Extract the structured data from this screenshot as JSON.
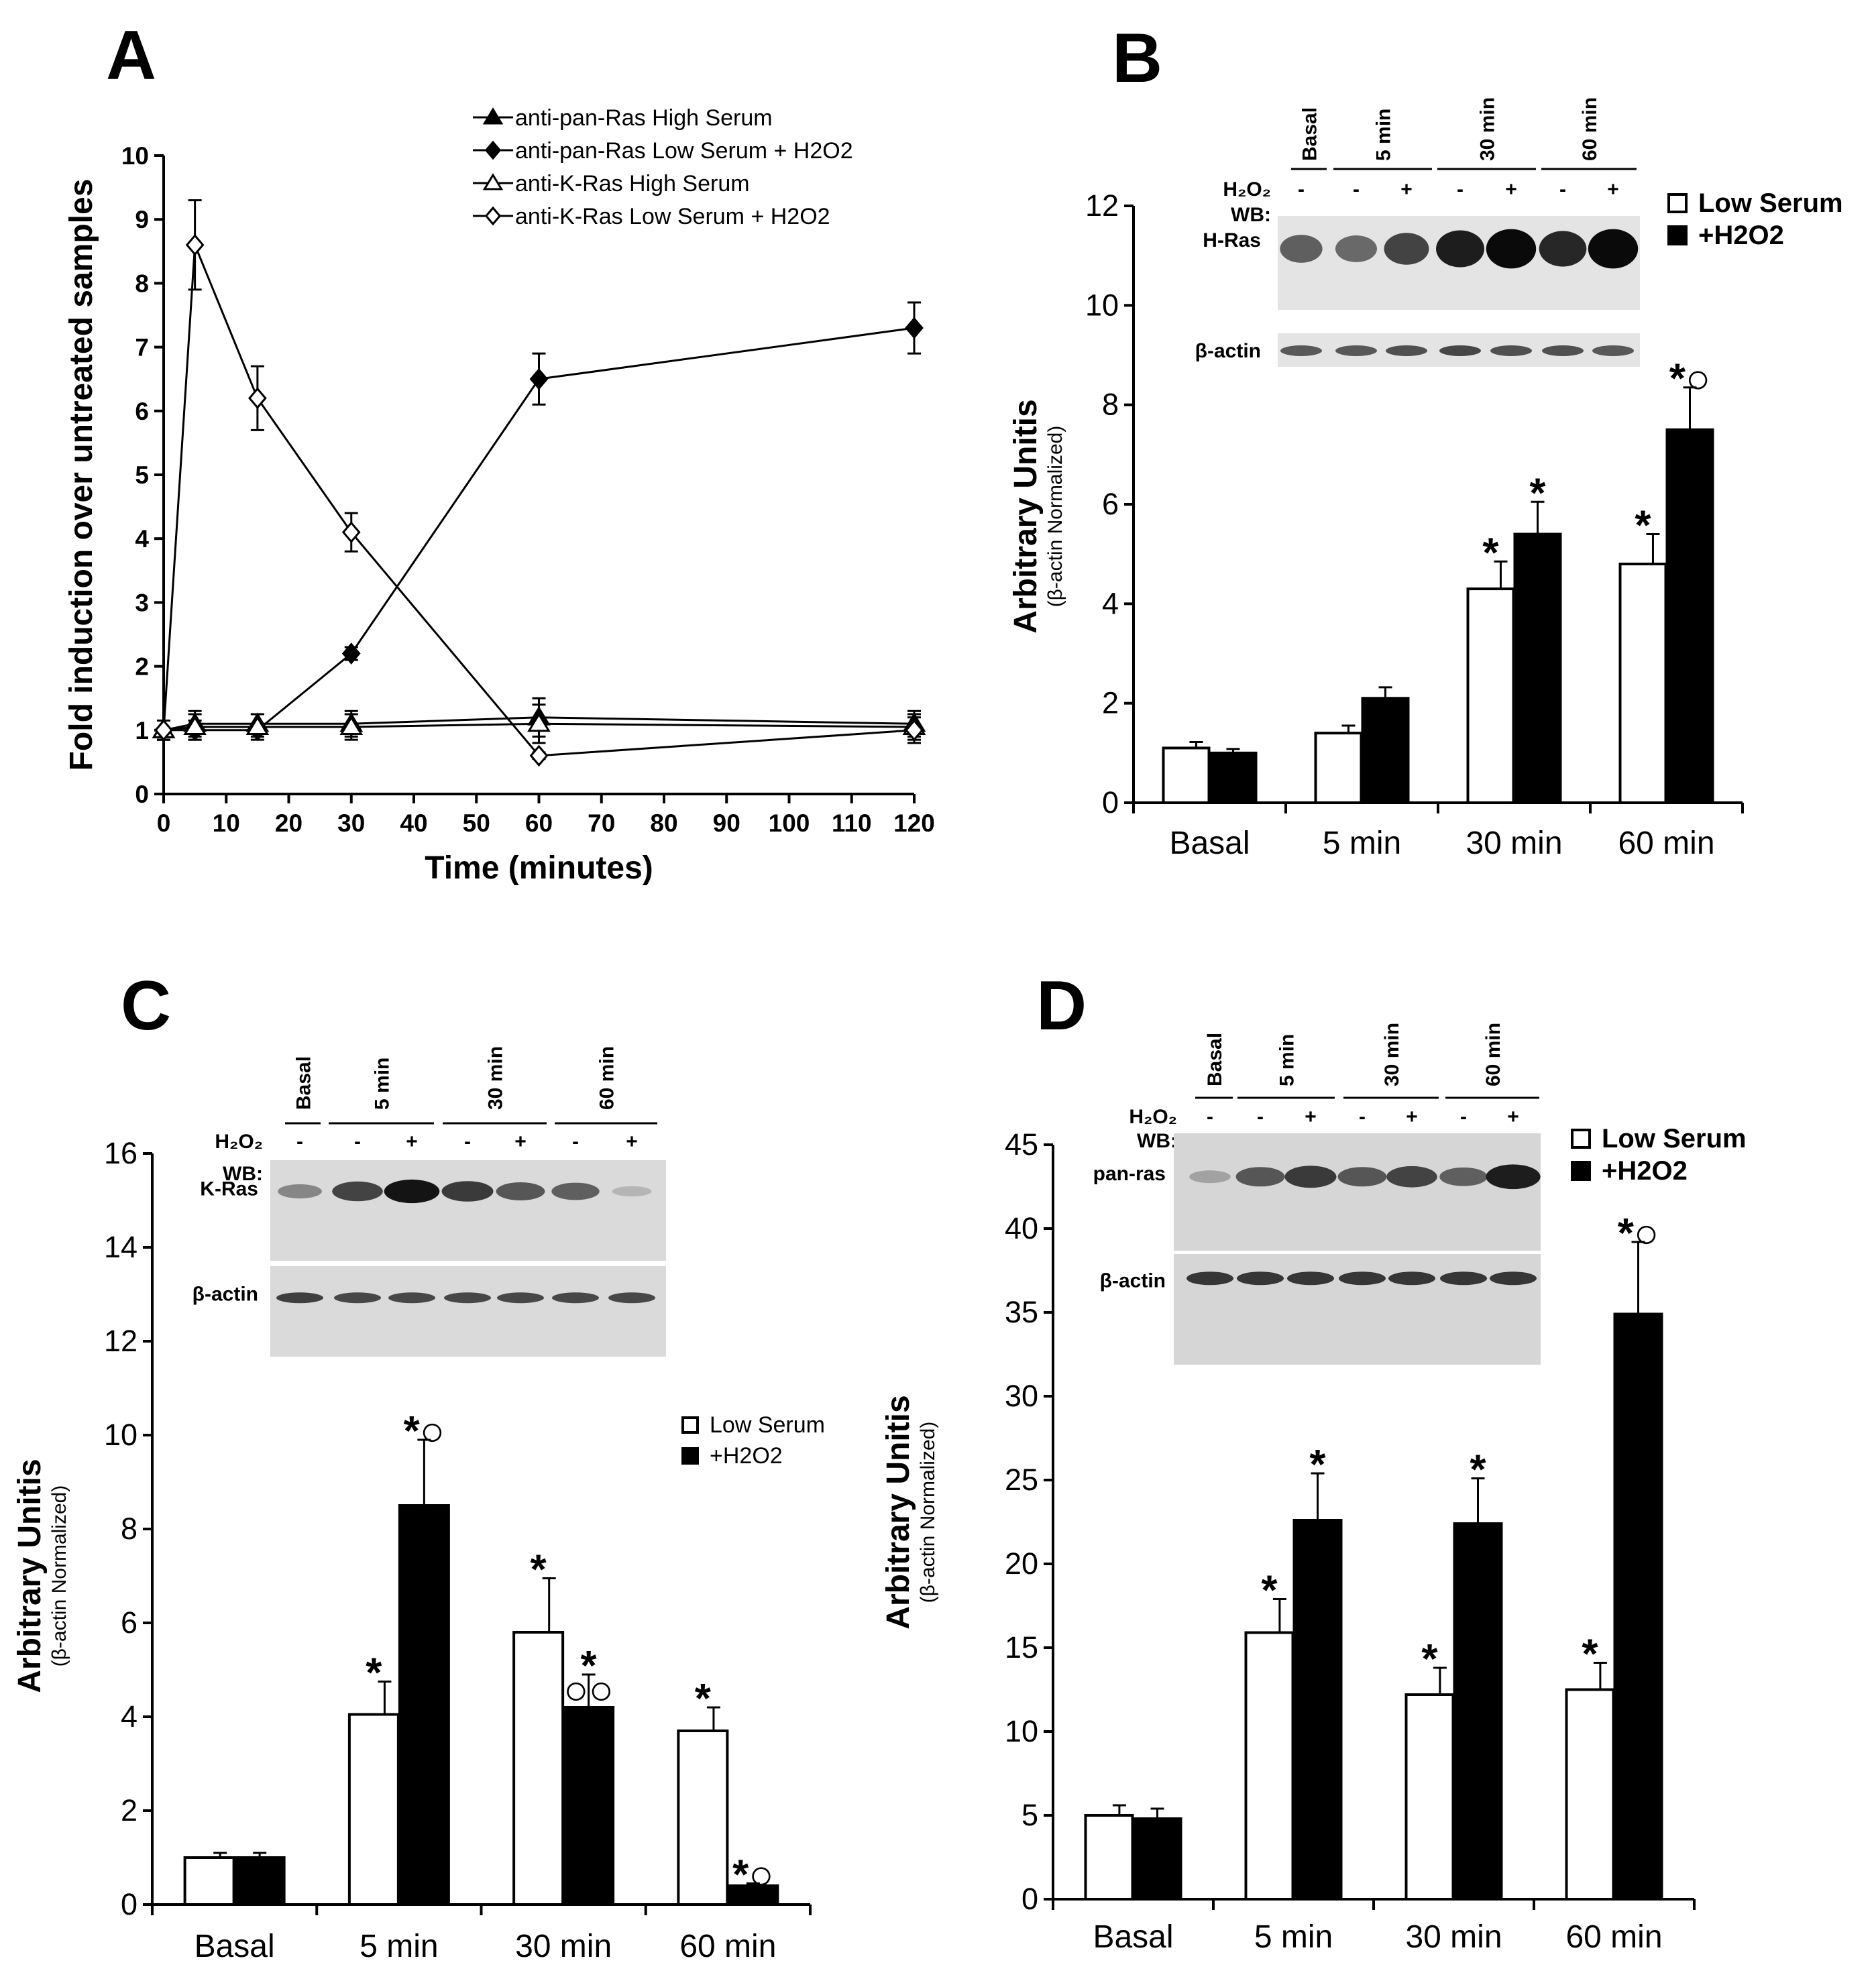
{
  "panels": {
    "A": {
      "letter": "A",
      "chart_data": {
        "type": "line",
        "xlabel": "Time (minutes)",
        "ylabel": "Fold induction over untreated samples",
        "xlim": [
          0,
          120
        ],
        "ylim": [
          0,
          10
        ],
        "x_ticks": [
          0,
          10,
          20,
          30,
          40,
          50,
          60,
          70,
          80,
          90,
          100,
          110,
          120
        ],
        "y_ticks": [
          0,
          1,
          2,
          3,
          4,
          5,
          6,
          7,
          8,
          9,
          10
        ],
        "series": [
          {
            "name": "anti-pan-Ras High Serum",
            "marker": "filled-triangle",
            "x": [
              0,
              5,
              15,
              30,
              60,
              120
            ],
            "values": [
              1.0,
              1.1,
              1.1,
              1.1,
              1.2,
              1.1
            ],
            "errors": [
              0.15,
              0.2,
              0.15,
              0.2,
              0.3,
              0.2
            ]
          },
          {
            "name": "anti-pan-Ras Low Serum + H2O2",
            "marker": "filled-diamond",
            "x": [
              0,
              5,
              15,
              30,
              60,
              120
            ],
            "values": [
              1.0,
              1.0,
              1.0,
              2.2,
              6.5,
              7.3
            ],
            "errors": [
              0.15,
              0.15,
              0.1,
              0.1,
              0.4,
              0.4
            ]
          },
          {
            "name": "anti-K-Ras High Serum",
            "marker": "open-triangle",
            "x": [
              0,
              5,
              15,
              30,
              60,
              120
            ],
            "values": [
              1.0,
              1.05,
              1.05,
              1.05,
              1.1,
              1.05
            ],
            "errors": [
              0.15,
              0.2,
              0.2,
              0.2,
              0.3,
              0.2
            ]
          },
          {
            "name": "anti-K-Ras Low Serum + H2O2",
            "marker": "open-diamond",
            "x": [
              0,
              5,
              15,
              30,
              60,
              120
            ],
            "values": [
              1.0,
              8.6,
              6.2,
              4.1,
              0.6,
              1.0
            ],
            "errors": [
              0.15,
              0.7,
              0.5,
              0.3,
              0.05,
              0.2
            ]
          }
        ]
      }
    },
    "B": {
      "letter": "B",
      "blot": {
        "time_labels": [
          "Basal",
          "5 min",
          "30 min",
          "60 min"
        ],
        "treatment_label": "H₂O₂",
        "treatment_signs": [
          "-",
          "-",
          "+",
          "-",
          "+",
          "-",
          "+"
        ],
        "wb_label": "WB:",
        "protein_label": "H-Ras",
        "loading_label": "β-actin",
        "protein_band_strength": [
          0.55,
          0.5,
          0.7,
          0.9,
          1.0,
          0.85,
          1.0
        ],
        "loading_band_strength": [
          0.6,
          0.6,
          0.65,
          0.7,
          0.65,
          0.65,
          0.6
        ]
      },
      "chart_data": {
        "type": "bar",
        "categories": [
          "Basal",
          "5 min",
          "30 min",
          "60 min"
        ],
        "ylabel": "Arbitrary Unitis",
        "ylabel_sub": "(β-actin Normalized)",
        "ylim": [
          0,
          12
        ],
        "y_ticks": [
          0,
          2,
          4,
          6,
          8,
          10,
          12
        ],
        "series": [
          {
            "name": "Low Serum",
            "color": "#ffffff",
            "values": [
              1.1,
              1.4,
              4.3,
              4.8
            ],
            "errors": [
              0.12,
              0.15,
              0.55,
              0.6
            ]
          },
          {
            "name": "+H2O2",
            "color": "#000000",
            "values": [
              1.0,
              2.1,
              5.4,
              7.5
            ],
            "errors": [
              0.08,
              0.22,
              0.65,
              0.85
            ]
          }
        ],
        "annotations": [
          {
            "category": "30 min",
            "series": "Low Serum",
            "text": "*"
          },
          {
            "category": "30 min",
            "series": "+H2O2",
            "text": "*"
          },
          {
            "category": "60 min",
            "series": "Low Serum",
            "text": "*"
          },
          {
            "category": "60 min",
            "series": "+H2O2",
            "text": "*○"
          }
        ]
      }
    },
    "C": {
      "letter": "C",
      "blot": {
        "time_labels": [
          "Basal",
          "5 min",
          "30 min",
          "60 min"
        ],
        "treatment_label": "H₂O₂",
        "treatment_signs": [
          "-",
          "-",
          "+",
          "-",
          "+",
          "-",
          "+"
        ],
        "wb_label": "WB:",
        "protein_label": "K-Ras",
        "loading_label": "β-actin",
        "protein_band_strength": [
          0.35,
          0.7,
          0.95,
          0.75,
          0.6,
          0.55,
          0.1
        ],
        "loading_band_strength": [
          0.75,
          0.7,
          0.7,
          0.7,
          0.7,
          0.7,
          0.7
        ]
      },
      "chart_data": {
        "type": "bar",
        "categories": [
          "Basal",
          "5 min",
          "30 min",
          "60 min"
        ],
        "ylabel": "Arbitrary Unitis",
        "ylabel_sub": "(β-actin Normalized)",
        "ylim": [
          0,
          16
        ],
        "y_ticks": [
          0,
          2,
          4,
          6,
          8,
          10,
          12,
          14,
          16
        ],
        "series": [
          {
            "name": "Low Serum",
            "color": "#ffffff",
            "values": [
              1.0,
              4.05,
              5.8,
              3.7
            ],
            "errors": [
              0.1,
              0.7,
              1.15,
              0.5
            ]
          },
          {
            "name": "+H2O2",
            "color": "#000000",
            "values": [
              1.0,
              8.5,
              4.2,
              0.4
            ],
            "errors": [
              0.1,
              1.4,
              0.7,
              0.05
            ]
          }
        ],
        "annotations": [
          {
            "category": "5 min",
            "series": "Low Serum",
            "text": "*"
          },
          {
            "category": "5 min",
            "series": "+H2O2",
            "text": "*○"
          },
          {
            "category": "30 min",
            "series": "Low Serum",
            "text": "*"
          },
          {
            "category": "30 min",
            "series": "+H2O2",
            "text": "*"
          },
          {
            "category": "30 min",
            "series": "+H2O2",
            "text": "○○"
          },
          {
            "category": "60 min",
            "series": "Low Serum",
            "text": "*"
          },
          {
            "category": "60 min",
            "series": "+H2O2",
            "text": "*○"
          }
        ]
      }
    },
    "D": {
      "letter": "D",
      "blot": {
        "time_labels": [
          "Basal",
          "5 min",
          "30 min",
          "60 min"
        ],
        "treatment_label": "H₂O₂",
        "treatment_signs": [
          "-",
          "-",
          "+",
          "-",
          "+",
          "-",
          "+"
        ],
        "wb_label": "WB:",
        "protein_label": "pan-ras",
        "loading_label": "β-actin",
        "protein_band_strength": [
          0.2,
          0.6,
          0.75,
          0.6,
          0.7,
          0.55,
          0.9
        ],
        "loading_band_strength": [
          0.8,
          0.8,
          0.8,
          0.8,
          0.8,
          0.8,
          0.8
        ]
      },
      "chart_data": {
        "type": "bar",
        "categories": [
          "Basal",
          "5 min",
          "30 min",
          "60 min"
        ],
        "ylabel": "Arbitrary Unitis",
        "ylabel_sub": "(β-actin Normalized)",
        "ylim": [
          0,
          45
        ],
        "y_ticks": [
          0,
          5,
          10,
          15,
          20,
          25,
          30,
          35,
          40,
          45
        ],
        "series": [
          {
            "name": "Low Serum",
            "color": "#ffffff",
            "values": [
              5.0,
              15.9,
              12.2,
              12.5
            ],
            "errors": [
              0.6,
              2.0,
              1.6,
              1.6
            ]
          },
          {
            "name": "+H2O2",
            "color": "#000000",
            "values": [
              4.8,
              22.6,
              22.4,
              34.9
            ],
            "errors": [
              0.6,
              2.8,
              2.7,
              4.3
            ]
          }
        ],
        "annotations": [
          {
            "category": "5 min",
            "series": "Low Serum",
            "text": "*"
          },
          {
            "category": "5 min",
            "series": "+H2O2",
            "text": "*"
          },
          {
            "category": "30 min",
            "series": "Low Serum",
            "text": "*"
          },
          {
            "category": "30 min",
            "series": "+H2O2",
            "text": "*"
          },
          {
            "category": "60 min",
            "series": "Low Serum",
            "text": "*"
          },
          {
            "category": "60 min",
            "series": "+H2O2",
            "text": "*○"
          }
        ]
      }
    }
  }
}
